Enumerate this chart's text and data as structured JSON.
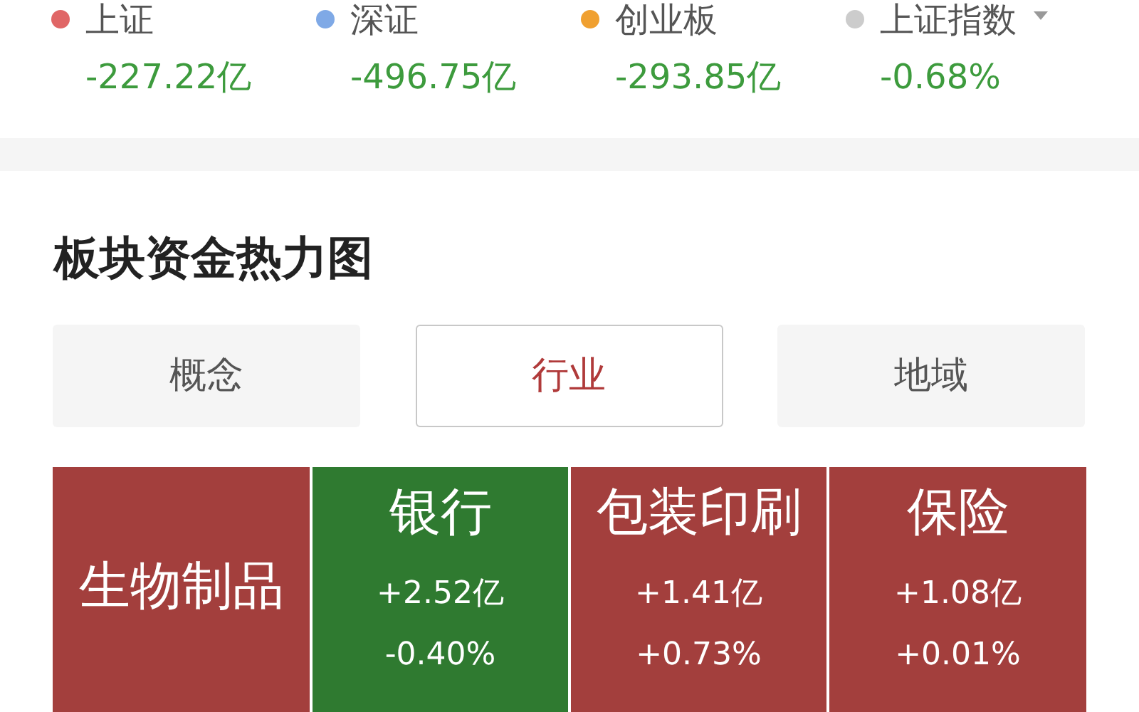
{
  "chart_data": [
    {
      "type": "other",
      "categories": [
        "上证",
        "深证",
        "创业板",
        "上证指数"
      ],
      "values": [
        -227.22,
        -496.75,
        -293.85,
        -0.68
      ],
      "value_labels": [
        "-227.22亿",
        "-496.75亿",
        "-293.85亿",
        "-0.68%"
      ],
      "colors": [
        "#e06666",
        "#7fa9e6",
        "#f0a030",
        "#cccccc"
      ]
    },
    {
      "type": "other",
      "title": "板块资金热力图",
      "annotations": [
        "概念",
        "行业",
        "地域"
      ],
      "categories": [
        "生物制品",
        "银行",
        "包装印刷",
        "保险"
      ],
      "series": [
        {
          "values": [
            null,
            2.52,
            1.41,
            1.08
          ],
          "value_labels": [
            null,
            "+2.52亿",
            "+1.41亿",
            "+1.08亿"
          ],
          "colors": [
            "#a33f3d",
            "#2f7a30",
            "#a33f3d",
            "#a33f3d"
          ]
        },
        {
          "values": [
            null,
            -0.4,
            0.73,
            0.01
          ],
          "value_labels": [
            null,
            "-0.40%",
            "+0.73%",
            "+0.01%"
          ]
        }
      ]
    }
  ]
}
